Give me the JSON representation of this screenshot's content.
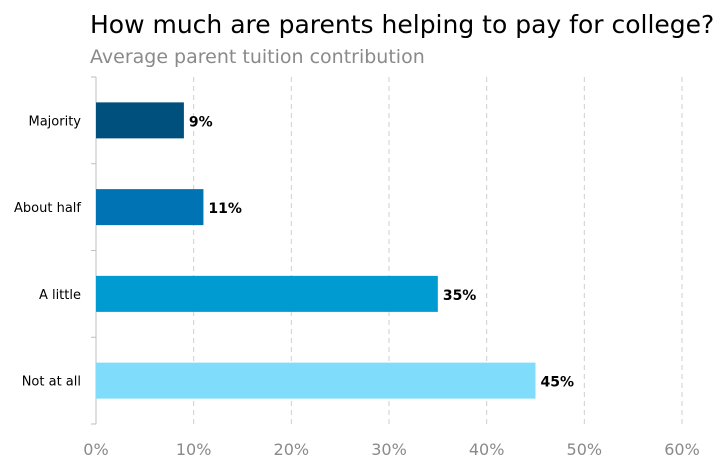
{
  "chart_data": {
    "type": "bar",
    "orientation": "horizontal",
    "title": "How much are parents helping to pay for college?",
    "subtitle": "Average parent tuition contribution",
    "categories": [
      "Majority",
      "About half",
      "A little",
      "Not at all"
    ],
    "values": [
      9,
      11,
      35,
      45
    ],
    "data_labels": [
      "9%",
      "11%",
      "35%",
      "45%"
    ],
    "colors": [
      "#00507d",
      "#0073b4",
      "#009bd0",
      "#7fdcfa"
    ],
    "xlim": [
      0,
      60
    ],
    "xticks": [
      0,
      10,
      20,
      30,
      40,
      50,
      60
    ],
    "xtick_labels": [
      "0%",
      "10%",
      "20%",
      "30%",
      "40%",
      "50%",
      "60%"
    ],
    "grid": true,
    "legend": "none"
  }
}
